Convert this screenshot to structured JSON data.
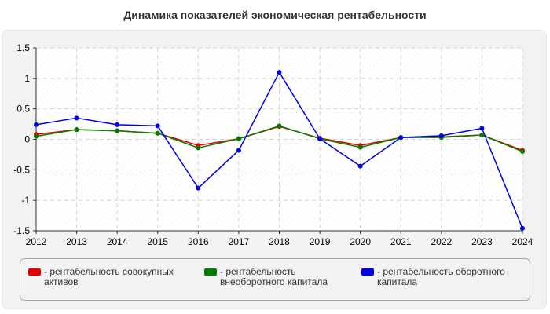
{
  "chart_data": {
    "type": "line",
    "title": "Динамика показателей экономическая рентабельности",
    "xlabel": "",
    "ylabel": "",
    "categories": [
      "2012",
      "2013",
      "2014",
      "2015",
      "2016",
      "2017",
      "2018",
      "2019",
      "2020",
      "2021",
      "2022",
      "2023",
      "2024"
    ],
    "ylim": [
      -1.5,
      1.5
    ],
    "yticks": [
      "1.5",
      "1",
      "0.5",
      "0",
      "-0.5",
      "-1",
      "-1.5"
    ],
    "grid": true,
    "legend_position": "bottom",
    "series": [
      {
        "name": "- рентабельность совокупных активов",
        "color": "#e60000",
        "values": [
          0.08,
          0.16,
          0.14,
          0.1,
          -0.1,
          0.01,
          0.21,
          0.02,
          -0.1,
          0.03,
          0.04,
          0.07,
          -0.18
        ]
      },
      {
        "name": "- рентабельность внеоборотного капитала",
        "color": "#008000",
        "values": [
          0.05,
          0.16,
          0.14,
          0.1,
          -0.14,
          0.01,
          0.22,
          0.01,
          -0.13,
          0.03,
          0.03,
          0.07,
          -0.2
        ]
      },
      {
        "name": "- рентабельность оборотного капитала",
        "color": "#0000e6",
        "values": [
          0.24,
          0.35,
          0.24,
          0.22,
          -0.8,
          -0.18,
          1.1,
          0.01,
          -0.44,
          0.03,
          0.06,
          0.18,
          -1.46
        ]
      }
    ]
  }
}
